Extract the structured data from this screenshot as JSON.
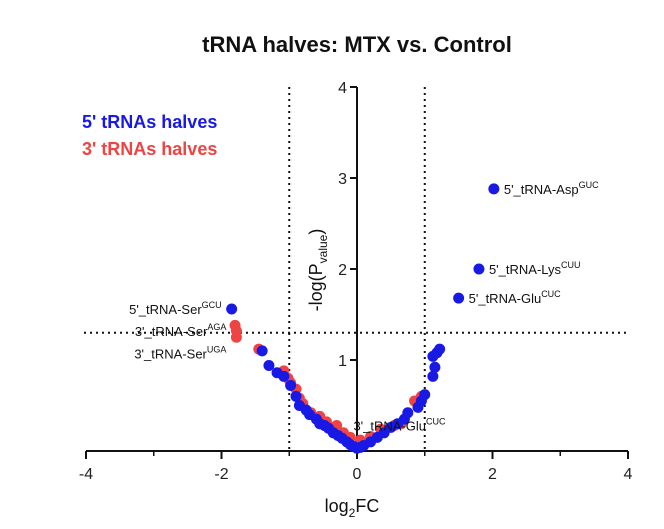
{
  "chart_data": {
    "type": "scatter",
    "title": "tRNA halves: MTX vs. Control",
    "xlabel": {
      "main": "log",
      "sub": "2",
      "tail": "FC"
    },
    "ylabel": {
      "main": "-log(P",
      "sub": "value",
      "tail": ")"
    },
    "xlim": [
      -4,
      4
    ],
    "ylim": [
      0,
      4
    ],
    "xticks": [
      "-4",
      "-2",
      "0",
      "2",
      "4"
    ],
    "yticks": [
      "1",
      "2",
      "3",
      "4"
    ],
    "thresholds": {
      "x": [
        -1,
        1
      ],
      "y": 1.3
    },
    "grid": false,
    "legend_position": "top-left",
    "colors": {
      "five_prime": "#1919e6",
      "three_prime": "#ee4444"
    },
    "series": [
      {
        "name": "5' tRNAs halves",
        "color": "#1919e6",
        "points": [
          [
            -1.85,
            1.56
          ],
          [
            -1.4,
            1.1
          ],
          [
            -1.3,
            0.94
          ],
          [
            -1.18,
            0.86
          ],
          [
            -1.08,
            0.82
          ],
          [
            -0.98,
            0.72
          ],
          [
            -0.9,
            0.6
          ],
          [
            -0.85,
            0.5
          ],
          [
            -0.75,
            0.45
          ],
          [
            -0.7,
            0.4
          ],
          [
            -0.6,
            0.35
          ],
          [
            -0.55,
            0.3
          ],
          [
            -0.48,
            0.28
          ],
          [
            -0.42,
            0.25
          ],
          [
            -0.35,
            0.2
          ],
          [
            -0.28,
            0.17
          ],
          [
            -0.22,
            0.14
          ],
          [
            -0.15,
            0.1
          ],
          [
            -0.1,
            0.07
          ],
          [
            -0.05,
            0.05
          ],
          [
            0.0,
            0.03
          ],
          [
            0.05,
            0.04
          ],
          [
            0.1,
            0.06
          ],
          [
            0.2,
            0.1
          ],
          [
            0.3,
            0.15
          ],
          [
            0.4,
            0.2
          ],
          [
            0.5,
            0.26
          ],
          [
            0.6,
            0.3
          ],
          [
            0.7,
            0.35
          ],
          [
            0.75,
            0.42
          ],
          [
            0.9,
            0.48
          ],
          [
            0.95,
            0.55
          ],
          [
            1.0,
            0.62
          ],
          [
            1.12,
            0.82
          ],
          [
            1.15,
            0.92
          ],
          [
            1.12,
            1.04
          ],
          [
            1.18,
            1.08
          ],
          [
            1.22,
            1.12
          ],
          [
            1.5,
            1.68
          ],
          [
            1.8,
            2.0
          ],
          [
            2.02,
            2.88
          ]
        ]
      },
      {
        "name": "3' tRNAs halves",
        "color": "#ee4444",
        "points": [
          [
            -1.8,
            1.38
          ],
          [
            -1.78,
            1.32
          ],
          [
            -1.78,
            1.25
          ],
          [
            -1.45,
            1.12
          ],
          [
            -1.08,
            0.88
          ],
          [
            -1.02,
            0.8
          ],
          [
            -0.98,
            0.75
          ],
          [
            -0.9,
            0.68
          ],
          [
            -0.85,
            0.58
          ],
          [
            -0.8,
            0.52
          ],
          [
            -0.68,
            0.42
          ],
          [
            -0.55,
            0.38
          ],
          [
            -0.45,
            0.32
          ],
          [
            -0.3,
            0.28
          ],
          [
            -0.2,
            0.2
          ],
          [
            -0.1,
            0.15
          ],
          [
            0.05,
            0.12
          ],
          [
            0.2,
            0.16
          ],
          [
            0.35,
            0.24
          ],
          [
            0.55,
            0.28
          ],
          [
            0.65,
            0.3
          ],
          [
            0.85,
            0.55
          ],
          [
            0.95,
            0.6
          ]
        ]
      }
    ],
    "annotations": [
      {
        "text": "5'_tRNA-Asp",
        "sup": "GUC",
        "x": 2.02,
        "y": 2.88,
        "side": "right",
        "dy": 0.0
      },
      {
        "text": "5'_tRNA-Lys",
        "sup": "CUU",
        "x": 1.8,
        "y": 2.0,
        "side": "right",
        "dy": 0.0
      },
      {
        "text": "5'_tRNA-Glu",
        "sup": "CUC",
        "x": 1.5,
        "y": 1.68,
        "side": "right",
        "dy": 0.0
      },
      {
        "text": "5'_tRNA-Ser",
        "sup": "GCU",
        "x": -1.85,
        "y": 1.56,
        "side": "left",
        "dy": 0.0
      },
      {
        "text": "3'_tRNA-Ser",
        "sup": "AGA",
        "x": -1.78,
        "y": 1.32,
        "side": "left",
        "dy": 0.0
      },
      {
        "text": "3'_tRNA-Ser",
        "sup": "UGA",
        "x": -1.78,
        "y": 1.25,
        "side": "left",
        "dy": -0.18
      },
      {
        "text": "3'_tRNA-Glu",
        "sup": "CUC",
        "x": -0.2,
        "y": 0.28,
        "side": "right",
        "dy": 0.0
      }
    ]
  }
}
